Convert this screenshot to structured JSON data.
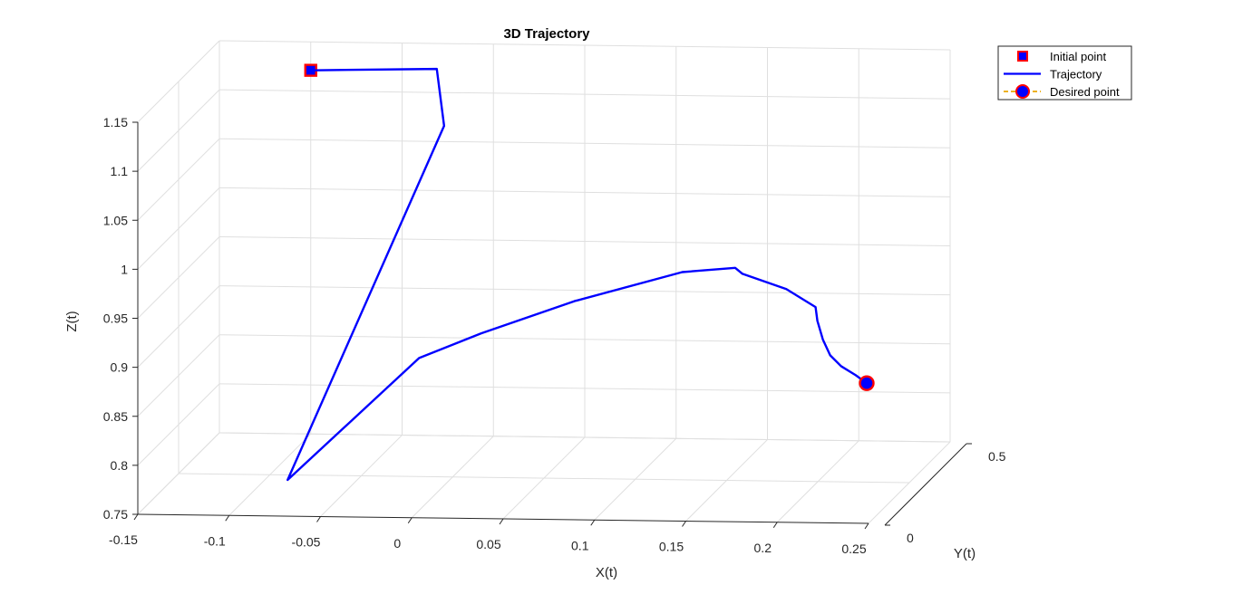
{
  "chart_data": {
    "type": "line",
    "projection": "3d",
    "title": "3D Trajectory",
    "xlabel": "X(t)",
    "ylabel": "Y(t)",
    "zlabel": "Z(t)",
    "xlim": [
      -0.15,
      0.25
    ],
    "ylim": [
      0,
      0.5
    ],
    "zlim": [
      0.75,
      1.15
    ],
    "xticks": [
      "-0.15",
      "-0.1",
      "-0.05",
      "0",
      "0.05",
      "0.1",
      "0.15",
      "0.2",
      "0.25"
    ],
    "yticks": [
      "0",
      "0.5"
    ],
    "zticks": [
      "0.75",
      "0.8",
      "0.85",
      "0.9",
      "0.95",
      "1",
      "1.05",
      "1.1",
      "1.15"
    ],
    "grid": true,
    "legend": {
      "position": "top-right",
      "entries": [
        "Initial point",
        "Trajectory",
        "Desired point"
      ]
    },
    "series": [
      {
        "name": "Initial point",
        "marker": "square",
        "color": "#0000ff",
        "edge_color": "#ff0000",
        "points": [
          {
            "x": -0.1,
            "y": 0.5,
            "z": 1.121
          }
        ]
      },
      {
        "name": "Trajectory",
        "marker": "none",
        "color": "#0000ff",
        "points": [
          {
            "x": -0.1,
            "y": 0.5,
            "z": 1.121
          },
          {
            "x": -0.031,
            "y": 0.5,
            "z": 1.124
          },
          {
            "x": -0.027,
            "y": 0.5,
            "z": 1.066
          },
          {
            "x": -0.068,
            "y": 0.0,
            "z": 0.787
          },
          {
            "x": 0.004,
            "y": 0.0,
            "z": 0.913
          },
          {
            "x": 0.038,
            "y": 0.0,
            "z": 0.939
          },
          {
            "x": 0.089,
            "y": 0.0,
            "z": 0.973
          },
          {
            "x": 0.148,
            "y": 0.0,
            "z": 1.004
          },
          {
            "x": 0.177,
            "y": 0.0,
            "z": 1.009
          },
          {
            "x": 0.181,
            "y": 0.0,
            "z": 1.003
          },
          {
            "x": 0.205,
            "y": 0.0,
            "z": 0.988
          },
          {
            "x": 0.221,
            "y": 0.0,
            "z": 0.97
          },
          {
            "x": 0.222,
            "y": 0.0,
            "z": 0.956
          },
          {
            "x": 0.225,
            "y": 0.0,
            "z": 0.937
          },
          {
            "x": 0.229,
            "y": 0.0,
            "z": 0.921
          },
          {
            "x": 0.235,
            "y": 0.0,
            "z": 0.91
          },
          {
            "x": 0.243,
            "y": 0.0,
            "z": 0.901
          },
          {
            "x": 0.249,
            "y": 0.0,
            "z": 0.893
          }
        ]
      },
      {
        "name": "Desired point",
        "marker": "circle",
        "color": "#0000ff",
        "edge_color": "#ff0000",
        "line_color": "#edb120",
        "points": [
          {
            "x": 0.249,
            "y": 0.0,
            "z": 0.893
          }
        ]
      }
    ]
  }
}
